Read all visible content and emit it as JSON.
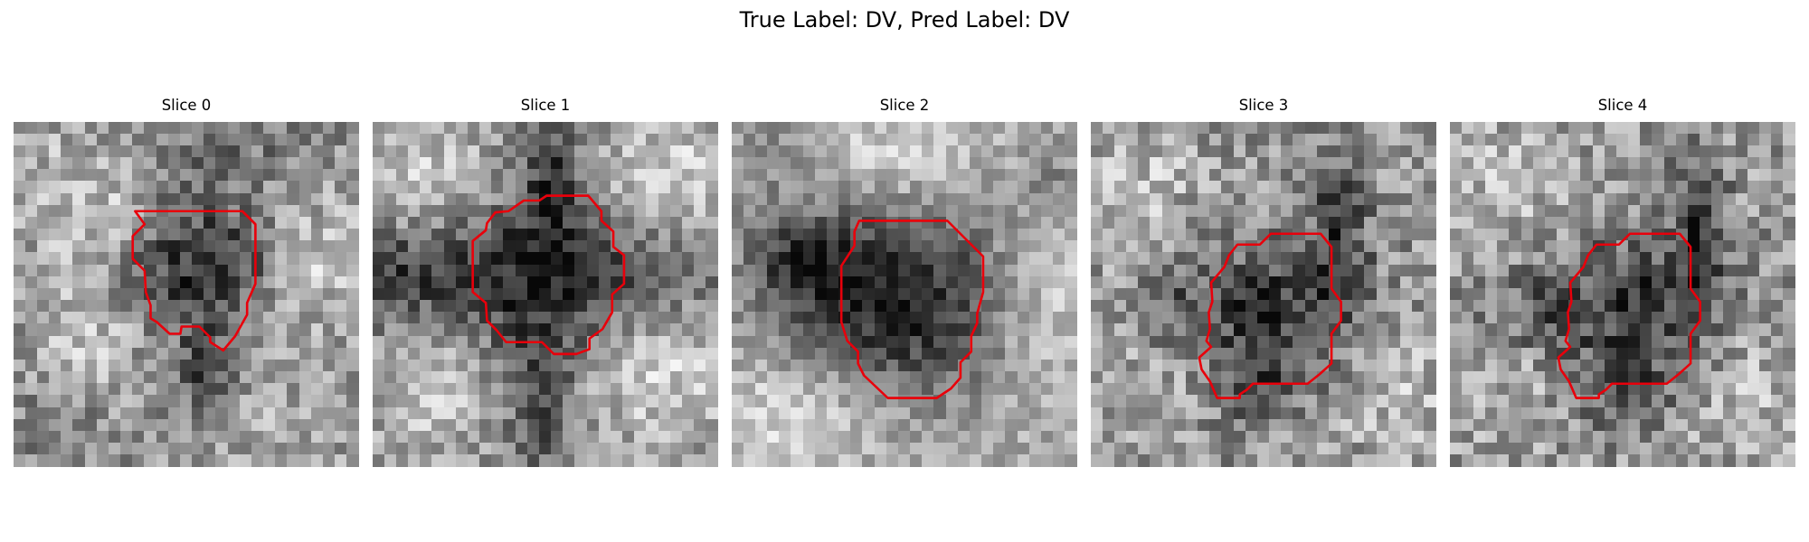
{
  "figure": {
    "title": "True Label: DV, Pred Label: DV"
  },
  "slices": [
    {
      "title": "Slice 0"
    },
    {
      "title": "Slice 1"
    },
    {
      "title": "Slice 2"
    },
    {
      "title": "Slice 3"
    },
    {
      "title": "Slice 4"
    }
  ],
  "colors": {
    "contour": "#e8000b",
    "background": "#ffffff"
  }
}
